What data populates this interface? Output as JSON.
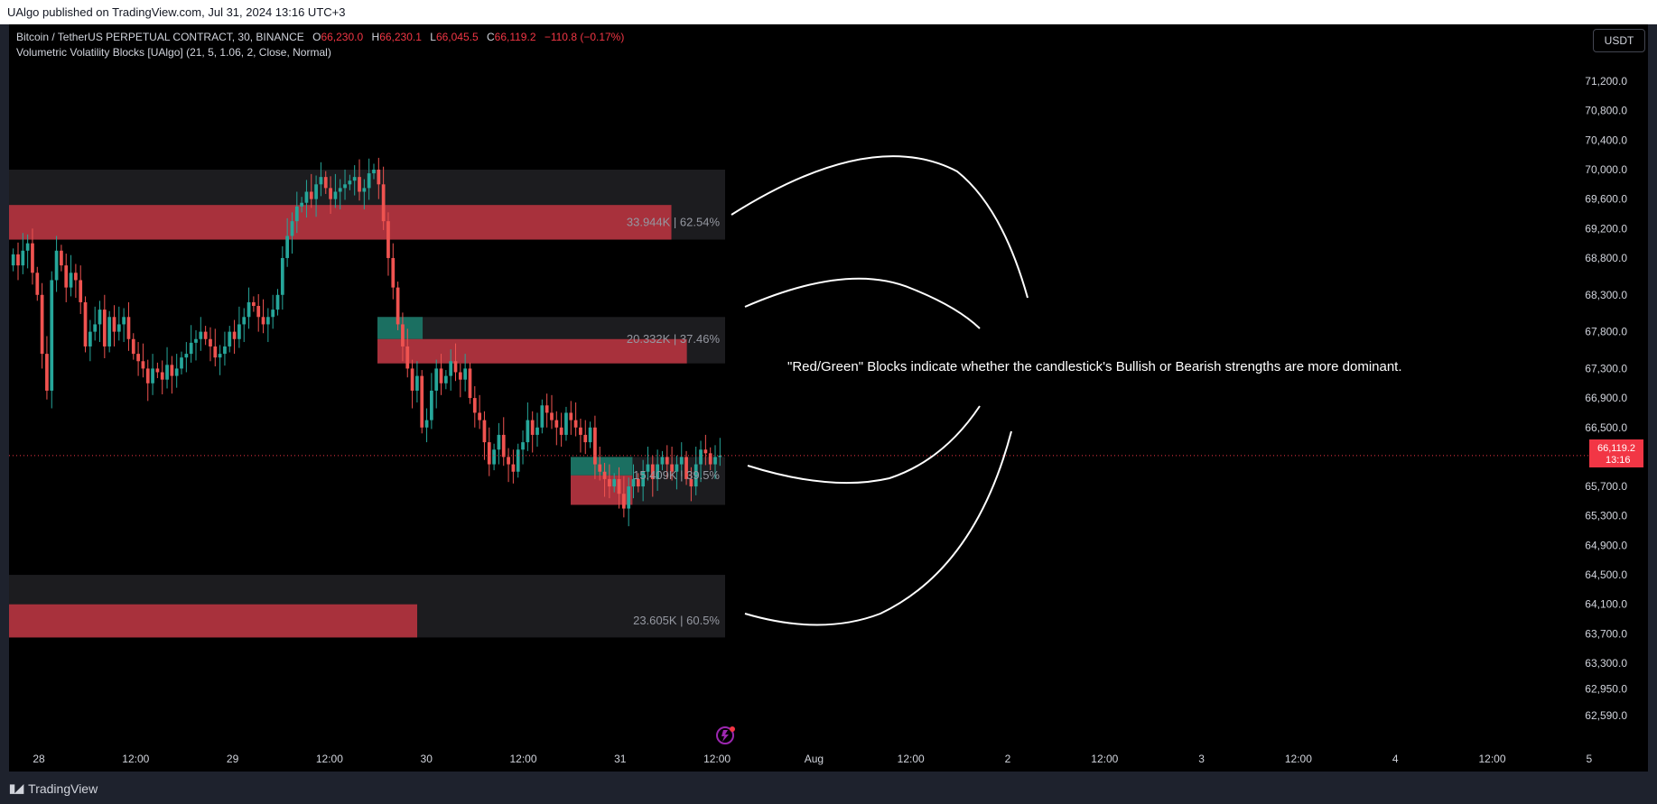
{
  "header": {
    "publisher": "UAlgo published on TradingView.com, Jul 31, 2024 13:16 UTC+3"
  },
  "legend": {
    "symbol": "Bitcoin / TetherUS PERPETUAL CONTRACT, 30, BINANCE",
    "o_label": "O",
    "o_value": "66,230.0",
    "h_label": "H",
    "h_value": "66,230.1",
    "l_label": "L",
    "l_value": "66,045.5",
    "c_label": "C",
    "c_value": "66,119.2",
    "change": "−110.8 (−0.17%)",
    "indicator": "Volumetric Volatility Blocks [UAlgo] (21, 5, 1.06, 2, Close, Normal)"
  },
  "currency": "USDT",
  "footer": {
    "brand": "TradingView",
    "logo_icon": "tradingview-logo-icon"
  },
  "colors": {
    "bull": "#26a69a",
    "bear": "#ef5350",
    "block_red": "#a8313c",
    "block_green": "#1b6f61",
    "block_bg": "#1c1c1f",
    "price_tag": "#f23645"
  },
  "chart_data": {
    "type": "candlestick",
    "price_axis": {
      "ticks": [
        "71,200.0",
        "70,800.0",
        "70,400.0",
        "70,000.0",
        "69,600.0",
        "69,200.0",
        "68,800.0",
        "68,300.0",
        "67,800.0",
        "67,300.0",
        "66,900.0",
        "66,500.0",
        "65,700.0",
        "65,300.0",
        "64,900.0",
        "64,500.0",
        "64,100.0",
        "63,700.0",
        "63,300.0",
        "62,950.0",
        "62,590.0"
      ],
      "tick_values": [
        71200,
        70800,
        70400,
        70000,
        69600,
        69200,
        68800,
        68300,
        67800,
        67300,
        66900,
        66500,
        65700,
        65300,
        64900,
        64500,
        64100,
        63700,
        63300,
        62950,
        62590
      ]
    },
    "time_axis": [
      "28",
      "12:00",
      "29",
      "12:00",
      "30",
      "12:00",
      "31",
      "12:00",
      "Aug",
      "12:00",
      "2",
      "12:00",
      "3",
      "12:00",
      "4",
      "12:00",
      "5"
    ],
    "last_price": {
      "value": 66119.2,
      "label": "66,119.2",
      "countdown": "13:16"
    },
    "blocks": [
      {
        "label": "33.944K | 62.54%",
        "top": 70000,
        "bottom": 69050,
        "bear_top": 69520,
        "bear_bottom": 69050,
        "bear_fraction": 0.925,
        "bull": false,
        "x_start": "Jul 27 20:00",
        "x_end": "Jul 31 12:30"
      },
      {
        "label": "20.332K | 37.46%",
        "top": 68000,
        "bottom": 67370,
        "bull_top": 68000,
        "bull_bottom": 67700,
        "bear_top": 67700,
        "bear_bottom": 67370,
        "bull_fraction": 0.13,
        "bear_fraction": 0.89,
        "x_start": "Jul 29 23:00",
        "x_end": "Jul 31 12:30"
      },
      {
        "label": "15.409K | 39.5%",
        "top": 66100,
        "bottom": 65450,
        "bull_top": 66100,
        "bull_bottom": 65850,
        "bear_top": 65850,
        "bear_bottom": 65450,
        "bull_fraction": 0.4,
        "bear_fraction": 0.4,
        "x_start": "Jul 30 21:30",
        "x_end": "Jul 31 12:30"
      },
      {
        "label": "23.605K | 60.5%",
        "top": 64500,
        "bottom": 63650,
        "bear_top": 64100,
        "bear_bottom": 63650,
        "bear_fraction": 0.57,
        "x_start": "Jul 27 20:00",
        "x_end": "Jul 31 12:30"
      }
    ],
    "candles_close": [
      68850,
      68700,
      68900,
      69000,
      68600,
      68300,
      67500,
      67000,
      68500,
      68900,
      68700,
      68400,
      68600,
      68500,
      68200,
      67600,
      67800,
      67900,
      68100,
      67600,
      68000,
      67800,
      67900,
      68000,
      67700,
      67500,
      67400,
      67300,
      67100,
      67300,
      67250,
      67150,
      67350,
      67200,
      67300,
      67450,
      67500,
      67650,
      67700,
      67800,
      67700,
      67600,
      67450,
      67500,
      67600,
      67800,
      67700,
      67900,
      68000,
      68200,
      68150,
      68000,
      67900,
      68000,
      68100,
      68300,
      68800,
      69100,
      69300,
      69500,
      69550,
      69700,
      69600,
      69800,
      69900,
      69750,
      69600,
      69700,
      69750,
      69800,
      69850,
      69900,
      69700,
      69750,
      69950,
      70000,
      69800,
      69300,
      68800,
      68400,
      67900,
      67600,
      67300,
      67000,
      67200,
      66500,
      66600,
      67000,
      67300,
      67100,
      67200,
      67400,
      67250,
      67150,
      67300,
      66900,
      66700,
      66600,
      66300,
      66000,
      66200,
      66400,
      66100,
      66000,
      65900,
      66200,
      66300,
      66600,
      66400,
      66500,
      66800,
      66700,
      66600,
      66500,
      66400,
      66700,
      66600,
      66500,
      66400,
      66300,
      66500,
      66000,
      65900,
      65800,
      65700,
      65800,
      65600,
      65400,
      65700,
      65800,
      65700,
      65900,
      66000,
      65800,
      66000,
      66100,
      66000,
      65900,
      66000,
      66100,
      65800,
      65700,
      66000,
      66200,
      66150,
      66000,
      66100,
      66119
    ]
  },
  "annotation": {
    "text": "\"Red/Green\" Blocks indicate whether the candlestick's Bullish or Bearish strengths are more dominant."
  }
}
